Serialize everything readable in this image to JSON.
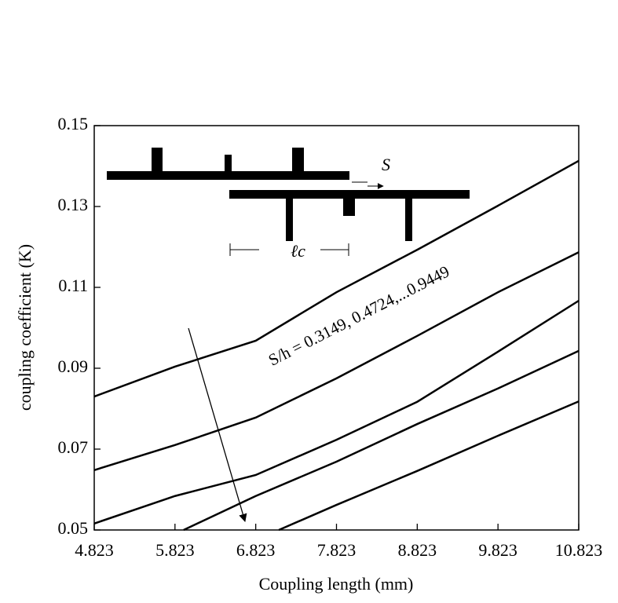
{
  "chart_data": {
    "type": "line",
    "x_label": "Coupling length (mm)",
    "y_label": "coupling coefficient  (K)",
    "annotation": "S/h = 0.3149, 0.4724,...0.9449",
    "inset_labels": [
      "S",
      "ℓc"
    ],
    "xlim": [
      4.823,
      10.823
    ],
    "xticks": [
      4.823,
      5.823,
      6.823,
      7.823,
      8.823,
      9.823,
      10.823
    ],
    "ylim": [
      0.05,
      0.15
    ],
    "yticks": [
      0.05,
      0.07,
      0.09,
      0.11,
      0.13,
      0.15
    ],
    "color": "#000000",
    "series": [
      {
        "x": [
          4.823,
          5.823,
          6.823,
          7.823,
          8.823,
          9.823,
          10.823
        ],
        "values": [
          0.083,
          0.0904,
          0.0968,
          0.1088,
          0.1193,
          0.1302,
          0.1413
        ]
      },
      {
        "x": [
          4.823,
          5.823,
          6.823,
          7.823,
          8.823,
          9.823,
          10.823
        ],
        "values": [
          0.0648,
          0.071,
          0.0778,
          0.0875,
          0.098,
          0.1088,
          0.1187
        ]
      },
      {
        "x": [
          4.823,
          5.823,
          6.823,
          7.823,
          8.823,
          9.823,
          10.823
        ],
        "values": [
          0.0516,
          0.0584,
          0.0636,
          0.0723,
          0.0817,
          0.0941,
          0.1067
        ]
      },
      {
        "x": [
          5.93,
          6.823,
          7.823,
          8.823,
          9.823,
          10.823
        ],
        "values": [
          0.05,
          0.0584,
          0.0669,
          0.0762,
          0.085,
          0.0943
        ]
      },
      {
        "x": [
          7.109,
          7.823,
          8.823,
          9.823,
          10.823
        ],
        "values": [
          0.05,
          0.0562,
          0.0646,
          0.0733,
          0.0818
        ]
      }
    ]
  }
}
